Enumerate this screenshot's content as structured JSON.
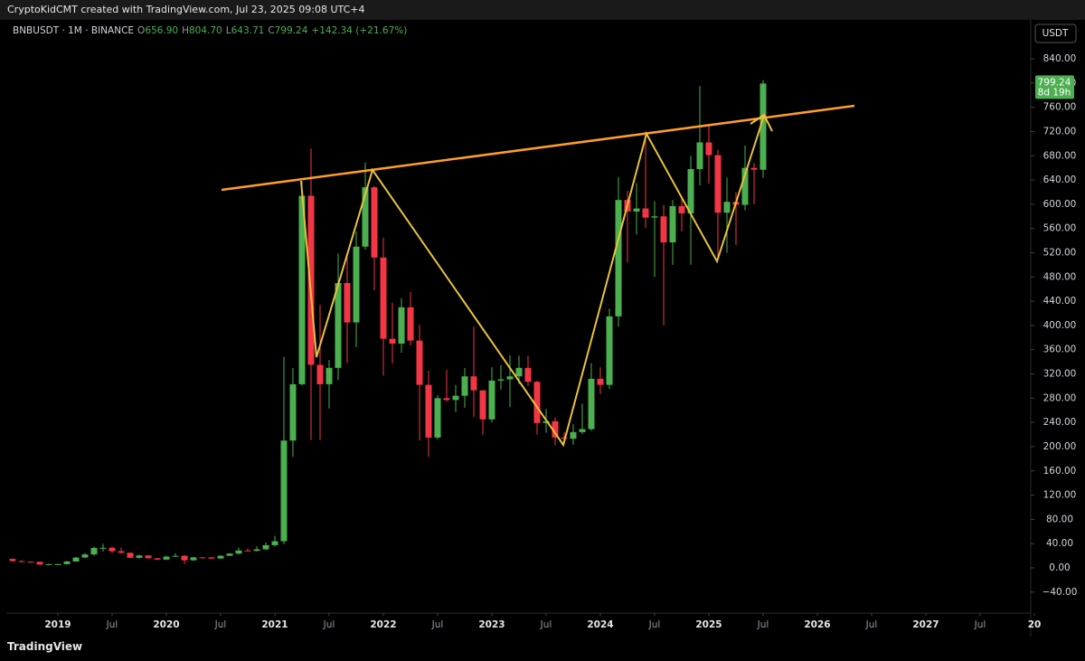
{
  "chart_data": {
    "type": "candlestick",
    "title": "CryptoKidCMT created with TradingView.com, Jul 23, 2025 09:08 UTC+4",
    "symbol": "BNBUSDT · 1M · BINANCE",
    "ohlc_legend": [
      {
        "label": "O",
        "value": "656.90"
      },
      {
        "label": "H",
        "value": "804.70"
      },
      {
        "label": "L",
        "value": "643.71"
      },
      {
        "label": "C",
        "value": "799.24"
      }
    ],
    "change": "+142.34 (+21.67%)",
    "currency": "USDT",
    "last_price_label": "799.24",
    "countdown": "8d 19h",
    "brand": "TradingView",
    "up_color": "#4caf50",
    "down_color": "#f23645",
    "grid": false,
    "x": [
      "2018-08",
      "2018-09",
      "2018-10",
      "2018-11",
      "2018-12",
      "2019-01",
      "2019-02",
      "2019-03",
      "2019-04",
      "2019-05",
      "2019-06",
      "2019-07",
      "2019-08",
      "2019-09",
      "2019-10",
      "2019-11",
      "2019-12",
      "2020-01",
      "2020-02",
      "2020-03",
      "2020-04",
      "2020-05",
      "2020-06",
      "2020-07",
      "2020-08",
      "2020-09",
      "2020-10",
      "2020-11",
      "2020-12",
      "2021-01",
      "2021-02",
      "2021-03",
      "2021-04",
      "2021-05",
      "2021-06",
      "2021-07",
      "2021-08",
      "2021-09",
      "2021-10",
      "2021-11",
      "2021-12",
      "2022-01",
      "2022-02",
      "2022-03",
      "2022-04",
      "2022-05",
      "2022-06",
      "2022-07",
      "2022-08",
      "2022-09",
      "2022-10",
      "2022-11",
      "2022-12",
      "2023-01",
      "2023-02",
      "2023-03",
      "2023-04",
      "2023-05",
      "2023-06",
      "2023-07",
      "2023-08",
      "2023-09",
      "2023-10",
      "2023-11",
      "2023-12",
      "2024-01",
      "2024-02",
      "2024-03",
      "2024-04",
      "2024-05",
      "2024-06",
      "2024-07",
      "2024-08",
      "2024-09",
      "2024-10",
      "2024-11",
      "2024-12",
      "2025-01",
      "2025-02",
      "2025-03",
      "2025-04",
      "2025-05",
      "2025-06",
      "2025-07"
    ],
    "open": [
      14.7,
      11.2,
      10.1,
      10.0,
      5.4,
      6.1,
      6.1,
      10.5,
      17.0,
      22.2,
      32.9,
      33.1,
      27.5,
      24.9,
      16.6,
      20.4,
      15.9,
      13.7,
      18.6,
      19.9,
      12.5,
      17.3,
      17.2,
      15.4,
      19.9,
      23.5,
      28.7,
      28.0,
      30.6,
      37.4,
      44,
      210,
      303,
      614,
      335,
      303,
      330,
      470,
      405,
      530,
      628,
      512,
      378,
      370,
      430,
      375,
      302,
      215,
      280,
      277,
      284,
      316,
      293,
      245,
      309,
      311,
      316,
      330,
      307,
      239,
      242,
      215,
      213,
      224,
      229,
      312,
      302,
      415,
      607,
      588,
      593,
      578,
      580,
      537,
      597,
      585,
      658,
      702,
      681,
      586,
      604,
      599,
      660,
      656.9
    ],
    "high": [
      15.9,
      12.3,
      10.6,
      10.3,
      6.7,
      7.0,
      12.0,
      17.9,
      24.5,
      35.0,
      39.6,
      34.6,
      33.4,
      25.4,
      22.0,
      21.3,
      16.3,
      19.8,
      24.3,
      21.0,
      18.0,
      18.0,
      18.4,
      21.0,
      24.3,
      33.4,
      31.7,
      35.6,
      42.0,
      52.9,
      348,
      330,
      638,
      692,
      434,
      343,
      519,
      518,
      555,
      669,
      630,
      545,
      437,
      445,
      455,
      401,
      325,
      285,
      327,
      302,
      330,
      398,
      293,
      331,
      335,
      351,
      350,
      350,
      309,
      262,
      248,
      224,
      237,
      271,
      338,
      331,
      428,
      645,
      622,
      635,
      720,
      605,
      599,
      607,
      612,
      680,
      795,
      730,
      690,
      644,
      620,
      697,
      668,
      804.7
    ],
    "low": [
      9.6,
      9.2,
      9.3,
      4.9,
      4.2,
      5.2,
      5.7,
      10.1,
      16.6,
      20.0,
      26.9,
      24.2,
      23.6,
      15.9,
      15.3,
      15.3,
      12.4,
      13.0,
      18.2,
      6.4,
      11.3,
      15.5,
      14.4,
      15.1,
      19.6,
      22.1,
      26.8,
      27.1,
      29.2,
      35.2,
      39,
      183,
      301,
      211,
      211,
      263,
      310,
      338,
      364,
      525,
      458,
      317,
      337,
      355,
      367,
      210,
      183,
      212,
      274,
      257,
      264,
      249,
      220,
      240,
      294,
      265,
      303,
      300,
      220,
      223,
      202,
      204,
      203,
      221,
      226,
      287,
      295,
      398,
      504,
      550,
      561,
      480,
      400,
      500,
      555,
      500,
      631,
      634,
      509,
      520,
      533,
      590,
      600,
      643.71
    ],
    "close": [
      11.2,
      10.1,
      10.0,
      5.4,
      6.1,
      6.1,
      10.5,
      17.0,
      22.2,
      32.9,
      33.1,
      27.5,
      24.9,
      16.6,
      20.4,
      15.9,
      13.7,
      18.6,
      19.9,
      12.5,
      17.3,
      17.2,
      15.4,
      19.9,
      23.5,
      28.7,
      28.0,
      30.6,
      37.4,
      44,
      210,
      303,
      614,
      335,
      303,
      330,
      470,
      405,
      530,
      628,
      512,
      378,
      370,
      430,
      375,
      302,
      215,
      280,
      277,
      284,
      316,
      293,
      245,
      309,
      311,
      316,
      330,
      307,
      239,
      242,
      215,
      213,
      224,
      229,
      312,
      302,
      415,
      607,
      588,
      593,
      578,
      580,
      537,
      597,
      585,
      658,
      702,
      681,
      586,
      604,
      599,
      660,
      657,
      799.24
    ],
    "xlim": [
      "2018-07",
      "2028-01"
    ],
    "xticks": [
      {
        "value": "2019-01",
        "label": "2019"
      },
      {
        "value": "2019-07",
        "label": "Jul"
      },
      {
        "value": "2020-01",
        "label": "2020"
      },
      {
        "value": "2020-07",
        "label": "Jul"
      },
      {
        "value": "2021-01",
        "label": "2021"
      },
      {
        "value": "2021-07",
        "label": "Jul"
      },
      {
        "value": "2022-01",
        "label": "2022"
      },
      {
        "value": "2022-07",
        "label": "Jul"
      },
      {
        "value": "2023-01",
        "label": "2023"
      },
      {
        "value": "2023-07",
        "label": "Jul"
      },
      {
        "value": "2024-01",
        "label": "2024"
      },
      {
        "value": "2024-07",
        "label": "Jul"
      },
      {
        "value": "2025-01",
        "label": "2025"
      },
      {
        "value": "2025-07",
        "label": "Jul"
      },
      {
        "value": "2026-01",
        "label": "2026"
      },
      {
        "value": "2026-07",
        "label": "Jul"
      },
      {
        "value": "2027-01",
        "label": "2027"
      },
      {
        "value": "2027-07",
        "label": "Jul"
      },
      {
        "value": "2028-01",
        "label": "20"
      }
    ],
    "ylim": [
      -77.6,
      904.2
    ],
    "yticks": [
      {
        "value": -40,
        "label": "−40.00"
      },
      {
        "value": 0,
        "label": "0.00"
      },
      {
        "value": 40,
        "label": "40.00"
      },
      {
        "value": 80,
        "label": "80.00"
      },
      {
        "value": 120,
        "label": "120.00"
      },
      {
        "value": 160,
        "label": "160.00"
      },
      {
        "value": 200,
        "label": "200.00"
      },
      {
        "value": 240,
        "label": "240.00"
      },
      {
        "value": 280,
        "label": "280.00"
      },
      {
        "value": 320,
        "label": "320.00"
      },
      {
        "value": 360,
        "label": "360.00"
      },
      {
        "value": 400,
        "label": "400.00"
      },
      {
        "value": 440,
        "label": "440.00"
      },
      {
        "value": 480,
        "label": "480.00"
      },
      {
        "value": 520,
        "label": "520.00"
      },
      {
        "value": 560,
        "label": "560.00"
      },
      {
        "value": 600,
        "label": "600.00"
      },
      {
        "value": 640,
        "label": "640.00"
      },
      {
        "value": 680,
        "label": "680.00"
      },
      {
        "value": 720,
        "label": "720.00"
      },
      {
        "value": 760,
        "label": "760.00"
      },
      {
        "value": 800,
        "label": "800.00"
      },
      {
        "value": 840,
        "label": "840.00"
      }
    ]
  }
}
